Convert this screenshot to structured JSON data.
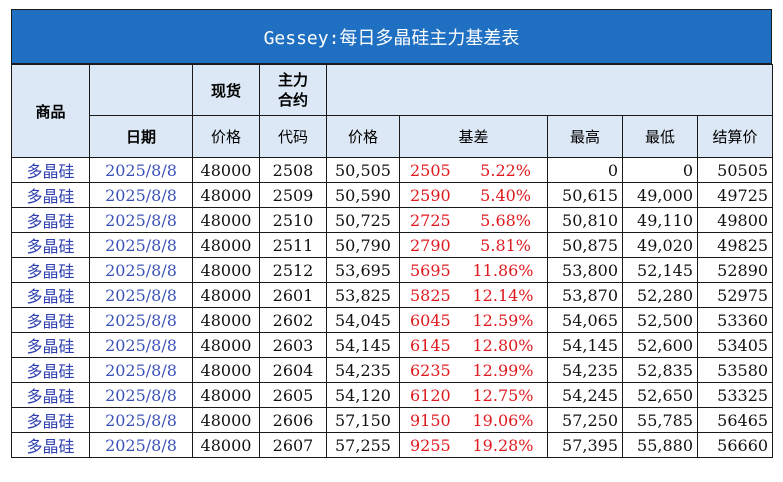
{
  "title": "Gessey:每日多晶硅主力基差表",
  "header": {
    "product": "商品",
    "spot": "现货",
    "main_contract": [
      "主力",
      "合约"
    ],
    "date": "日期",
    "spot_price": "价格",
    "code": "代码",
    "price": "价格",
    "basis": "基差",
    "high": "最高",
    "low": "最低",
    "settle": "结算价"
  },
  "rows": [
    {
      "product": "多晶硅",
      "date": "2025/8/8",
      "spot": "48000",
      "code": "2508",
      "price": "50,505",
      "basis": "2505",
      "pct": "5.22%",
      "high": "0",
      "low": "0",
      "settle": "50505"
    },
    {
      "product": "多晶硅",
      "date": "2025/8/8",
      "spot": "48000",
      "code": "2509",
      "price": "50,590",
      "basis": "2590",
      "pct": "5.40%",
      "high": "50,615",
      "low": "49,000",
      "settle": "49725"
    },
    {
      "product": "多晶硅",
      "date": "2025/8/8",
      "spot": "48000",
      "code": "2510",
      "price": "50,725",
      "basis": "2725",
      "pct": "5.68%",
      "high": "50,810",
      "low": "49,110",
      "settle": "49800"
    },
    {
      "product": "多晶硅",
      "date": "2025/8/8",
      "spot": "48000",
      "code": "2511",
      "price": "50,790",
      "basis": "2790",
      "pct": "5.81%",
      "high": "50,875",
      "low": "49,020",
      "settle": "49825"
    },
    {
      "product": "多晶硅",
      "date": "2025/8/8",
      "spot": "48000",
      "code": "2512",
      "price": "53,695",
      "basis": "5695",
      "pct": "11.86%",
      "high": "53,800",
      "low": "52,145",
      "settle": "52890"
    },
    {
      "product": "多晶硅",
      "date": "2025/8/8",
      "spot": "48000",
      "code": "2601",
      "price": "53,825",
      "basis": "5825",
      "pct": "12.14%",
      "high": "53,870",
      "low": "52,280",
      "settle": "52975"
    },
    {
      "product": "多晶硅",
      "date": "2025/8/8",
      "spot": "48000",
      "code": "2602",
      "price": "54,045",
      "basis": "6045",
      "pct": "12.59%",
      "high": "54,065",
      "low": "52,500",
      "settle": "53360"
    },
    {
      "product": "多晶硅",
      "date": "2025/8/8",
      "spot": "48000",
      "code": "2603",
      "price": "54,145",
      "basis": "6145",
      "pct": "12.80%",
      "high": "54,145",
      "low": "52,600",
      "settle": "53405"
    },
    {
      "product": "多晶硅",
      "date": "2025/8/8",
      "spot": "48000",
      "code": "2604",
      "price": "54,235",
      "basis": "6235",
      "pct": "12.99%",
      "high": "54,235",
      "low": "52,835",
      "settle": "53580"
    },
    {
      "product": "多晶硅",
      "date": "2025/8/8",
      "spot": "48000",
      "code": "2605",
      "price": "54,120",
      "basis": "6120",
      "pct": "12.75%",
      "high": "54,245",
      "low": "52,650",
      "settle": "53325"
    },
    {
      "product": "多晶硅",
      "date": "2025/8/8",
      "spot": "48000",
      "code": "2606",
      "price": "57,150",
      "basis": "9150",
      "pct": "19.06%",
      "high": "57,250",
      "low": "55,785",
      "settle": "56465"
    },
    {
      "product": "多晶硅",
      "date": "2025/8/8",
      "spot": "48000",
      "code": "2607",
      "price": "57,255",
      "basis": "9255",
      "pct": "19.28%",
      "high": "57,395",
      "low": "55,880",
      "settle": "56660"
    }
  ]
}
